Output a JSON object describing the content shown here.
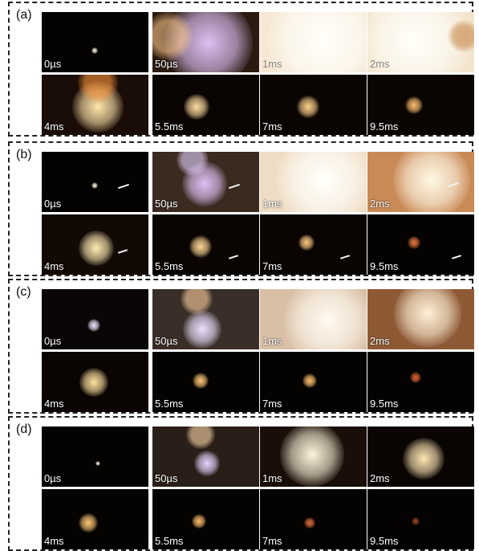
{
  "panels": [
    {
      "label": "(a)",
      "frames": [
        "0µs",
        "50µs",
        "1ms",
        "2ms",
        "4ms",
        "5.5ms",
        "7ms",
        "9.5ms"
      ]
    },
    {
      "label": "(b)",
      "frames": [
        "0µs",
        "50µs",
        "1ms",
        "2ms",
        "4ms",
        "5.5ms",
        "7ms",
        "9.5ms"
      ]
    },
    {
      "label": "(c)",
      "frames": [
        "0µs",
        "50µs",
        "1ms",
        "2ms",
        "4ms",
        "5.5ms",
        "7ms",
        "9.5ms"
      ]
    },
    {
      "label": "(d)",
      "frames": [
        "0µs",
        "50µs",
        "1ms",
        "2ms",
        "4ms",
        "5.5ms",
        "7ms",
        "9.5ms"
      ]
    }
  ]
}
